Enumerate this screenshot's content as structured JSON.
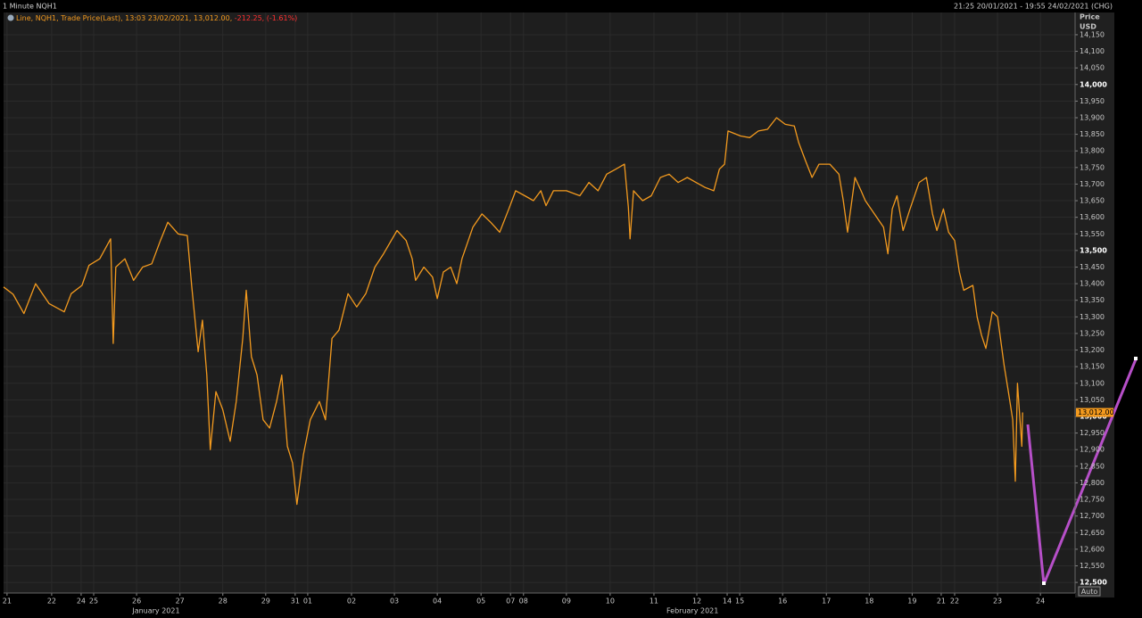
{
  "header": {
    "range_text": "21:25 20/01/2021 - 19:55 24/02/2021 (CHG)"
  },
  "toolbar": {
    "auto": "Auto"
  },
  "chart_data": {
    "type": "line",
    "title": "1 Minute NQH1",
    "change_text": "-212.25, (-1.61%)",
    "y_axis_title": "Price",
    "y_axis_unit": "USD",
    "last_price": 13012,
    "last_price_label": "13,012.00",
    "grid": true,
    "xlim": [
      -0.08,
      24.65
    ],
    "ylim": [
      12468,
      14217
    ],
    "xticks": [
      {
        "value": 0,
        "label": "21"
      },
      {
        "value": 1.03,
        "label": "22"
      },
      {
        "value": 1.71,
        "label": "24"
      },
      {
        "value": 2.0,
        "label": "25"
      },
      {
        "value": 2.99,
        "label": "26"
      },
      {
        "value": 3.99,
        "label": "27"
      },
      {
        "value": 4.98,
        "label": "28"
      },
      {
        "value": 5.97,
        "label": "29"
      },
      {
        "value": 6.65,
        "label": "31"
      },
      {
        "value": 6.94,
        "label": "01"
      },
      {
        "value": 7.95,
        "label": "02"
      },
      {
        "value": 8.94,
        "label": "03"
      },
      {
        "value": 9.93,
        "label": "04"
      },
      {
        "value": 10.94,
        "label": "05"
      },
      {
        "value": 11.62,
        "label": "07"
      },
      {
        "value": 11.92,
        "label": "08"
      },
      {
        "value": 12.91,
        "label": "09"
      },
      {
        "value": 13.92,
        "label": "10"
      },
      {
        "value": 14.93,
        "label": "11"
      },
      {
        "value": 15.92,
        "label": "12"
      },
      {
        "value": 16.62,
        "label": "14"
      },
      {
        "value": 16.91,
        "label": "15"
      },
      {
        "value": 17.9,
        "label": "16"
      },
      {
        "value": 18.91,
        "label": "17"
      },
      {
        "value": 19.9,
        "label": "18"
      },
      {
        "value": 20.89,
        "label": "19"
      },
      {
        "value": 21.56,
        "label": "21"
      },
      {
        "value": 21.87,
        "label": "22"
      },
      {
        "value": 22.86,
        "label": "23"
      },
      {
        "value": 23.85,
        "label": "24"
      }
    ],
    "month_labels": [
      {
        "value": 3.44,
        "label": "January 2021"
      },
      {
        "value": 15.82,
        "label": "February 2021"
      }
    ],
    "yticks": [
      {
        "value": 12500,
        "label": "12,500"
      },
      {
        "value": 12550,
        "label": "12,550"
      },
      {
        "value": 12600,
        "label": "12,600"
      },
      {
        "value": 12650,
        "label": "12,650"
      },
      {
        "value": 12700,
        "label": "12,700"
      },
      {
        "value": 12750,
        "label": "12,750"
      },
      {
        "value": 12800,
        "label": "12,800"
      },
      {
        "value": 12850,
        "label": "12,850"
      },
      {
        "value": 12900,
        "label": "12,900"
      },
      {
        "value": 12950,
        "label": "12,950"
      },
      {
        "value": 13000,
        "label": "13,000"
      },
      {
        "value": 13050,
        "label": "13,050"
      },
      {
        "value": 13100,
        "label": "13,100"
      },
      {
        "value": 13150,
        "label": "13,150"
      },
      {
        "value": 13200,
        "label": "13,200"
      },
      {
        "value": 13250,
        "label": "13,250"
      },
      {
        "value": 13300,
        "label": "13,300"
      },
      {
        "value": 13350,
        "label": "13,350"
      },
      {
        "value": 13400,
        "label": "13,400"
      },
      {
        "value": 13450,
        "label": "13,450"
      },
      {
        "value": 13500,
        "label": "13,500"
      },
      {
        "value": 13550,
        "label": "13,550"
      },
      {
        "value": 13600,
        "label": "13,600"
      },
      {
        "value": 13650,
        "label": "13,650"
      },
      {
        "value": 13700,
        "label": "13,700"
      },
      {
        "value": 13750,
        "label": "13,750"
      },
      {
        "value": 13800,
        "label": "13,800"
      },
      {
        "value": 13850,
        "label": "13,850"
      },
      {
        "value": 13900,
        "label": "13,900"
      },
      {
        "value": 13950,
        "label": "13,950"
      },
      {
        "value": 14000,
        "label": "14,000"
      },
      {
        "value": 14050,
        "label": "14,050"
      },
      {
        "value": 14100,
        "label": "14,100"
      },
      {
        "value": 14150,
        "label": "14,150"
      }
    ],
    "x": [
      -0.08,
      0.14,
      0.39,
      0.66,
      0.97,
      1.32,
      1.48,
      1.73,
      1.89,
      2.14,
      2.39,
      2.45,
      2.51,
      2.72,
      2.92,
      3.13,
      3.34,
      3.54,
      3.71,
      3.95,
      4.16,
      4.26,
      4.41,
      4.51,
      4.61,
      4.69,
      4.82,
      4.98,
      5.15,
      5.29,
      5.44,
      5.52,
      5.64,
      5.77,
      5.91,
      6.06,
      6.22,
      6.34,
      6.47,
      6.59,
      6.69,
      6.84,
      7.0,
      7.21,
      7.35,
      7.5,
      7.66,
      7.87,
      8.07,
      8.28,
      8.49,
      8.69,
      9.0,
      9.21,
      9.35,
      9.43,
      9.62,
      9.82,
      9.93,
      10.07,
      10.24,
      10.38,
      10.5,
      10.75,
      10.96,
      11.16,
      11.37,
      11.58,
      11.74,
      11.95,
      12.15,
      12.32,
      12.44,
      12.61,
      12.91,
      13.22,
      13.43,
      13.64,
      13.84,
      14.05,
      14.25,
      14.34,
      14.38,
      14.46,
      14.67,
      14.87,
      15.08,
      15.28,
      15.49,
      15.7,
      15.9,
      16.11,
      16.31,
      16.44,
      16.56,
      16.64,
      16.93,
      17.14,
      17.34,
      17.55,
      17.76,
      17.96,
      18.17,
      18.27,
      18.43,
      18.58,
      18.74,
      18.99,
      19.2,
      19.3,
      19.4,
      19.57,
      19.71,
      19.81,
      20.02,
      20.23,
      20.33,
      20.43,
      20.54,
      20.68,
      20.84,
      21.05,
      21.22,
      21.36,
      21.46,
      21.61,
      21.73,
      21.87,
      21.98,
      22.08,
      22.29,
      22.39,
      22.49,
      22.59,
      22.74,
      22.86,
      23.01,
      23.11,
      23.21,
      23.27,
      23.32,
      23.42,
      23.44
    ],
    "series": [
      {
        "name": "Line, NQH1, Trade Price(Last), 13:03 23/02/2021, 13,012.00,",
        "color": "#f39a1e",
        "values": [
          13390,
          13368,
          13310,
          13400,
          13340,
          13315,
          13370,
          13395,
          13455,
          13475,
          13535,
          13220,
          13450,
          13475,
          13410,
          13450,
          13460,
          13530,
          13585,
          13550,
          13545,
          13395,
          13195,
          13290,
          13125,
          12900,
          13075,
          13020,
          12925,
          13045,
          13235,
          13380,
          13180,
          13125,
          12990,
          12965,
          13045,
          13125,
          12910,
          12860,
          12735,
          12885,
          12990,
          13045,
          12990,
          13235,
          13260,
          13370,
          13330,
          13370,
          13450,
          13490,
          13560,
          13530,
          13475,
          13410,
          13450,
          13420,
          13355,
          13435,
          13450,
          13400,
          13475,
          13570,
          13610,
          13585,
          13555,
          13625,
          13680,
          13665,
          13650,
          13680,
          13635,
          13680,
          13680,
          13665,
          13705,
          13680,
          13730,
          13745,
          13760,
          13630,
          13535,
          13680,
          13650,
          13665,
          13720,
          13730,
          13705,
          13720,
          13705,
          13690,
          13680,
          13745,
          13760,
          13860,
          13845,
          13840,
          13860,
          13865,
          13900,
          13880,
          13875,
          13825,
          13770,
          13720,
          13760,
          13760,
          13730,
          13650,
          13555,
          13720,
          13680,
          13650,
          13610,
          13570,
          13490,
          13625,
          13665,
          13560,
          13625,
          13705,
          13720,
          13610,
          13560,
          13625,
          13555,
          13530,
          13435,
          13380,
          13395,
          13300,
          13245,
          13205,
          13315,
          13300,
          13155,
          13075,
          12990,
          12805,
          13100,
          12910,
          13012
        ]
      }
    ]
  }
}
